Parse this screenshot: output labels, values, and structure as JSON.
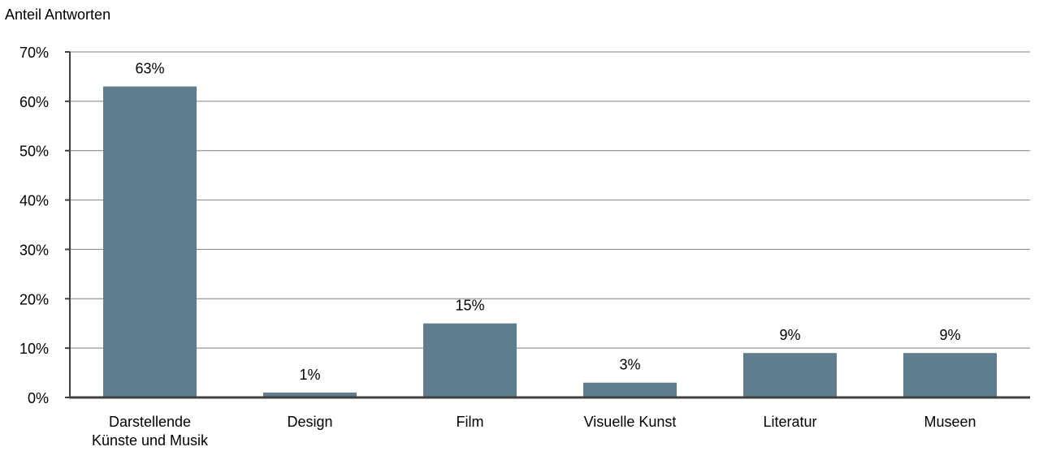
{
  "chart_data": {
    "type": "bar",
    "ylabel": "Anteil Antworten",
    "xlabel": "",
    "categories": [
      [
        "Darstellende",
        "Künste und Musik"
      ],
      [
        "Design"
      ],
      [
        "Film"
      ],
      [
        "Visuelle Kunst"
      ],
      [
        "Literatur"
      ],
      [
        "Museen"
      ]
    ],
    "values": [
      0.63,
      0.01,
      0.15,
      0.03,
      0.09,
      0.09
    ],
    "data_labels": [
      "63%",
      "1%",
      "15%",
      "3%",
      "9%",
      "9%"
    ],
    "ylim": [
      0,
      0.7
    ],
    "yticks": [
      0,
      0.1,
      0.2,
      0.3,
      0.4,
      0.5,
      0.6,
      0.7
    ],
    "ytick_labels": [
      "0%",
      "10%",
      "20%",
      "30%",
      "40%",
      "50%",
      "60%",
      "70%"
    ],
    "grid": true,
    "legend": false,
    "bar_color": "#5f7d8e",
    "grid_color": "#7f7f7f",
    "axis_color": "#404040"
  }
}
